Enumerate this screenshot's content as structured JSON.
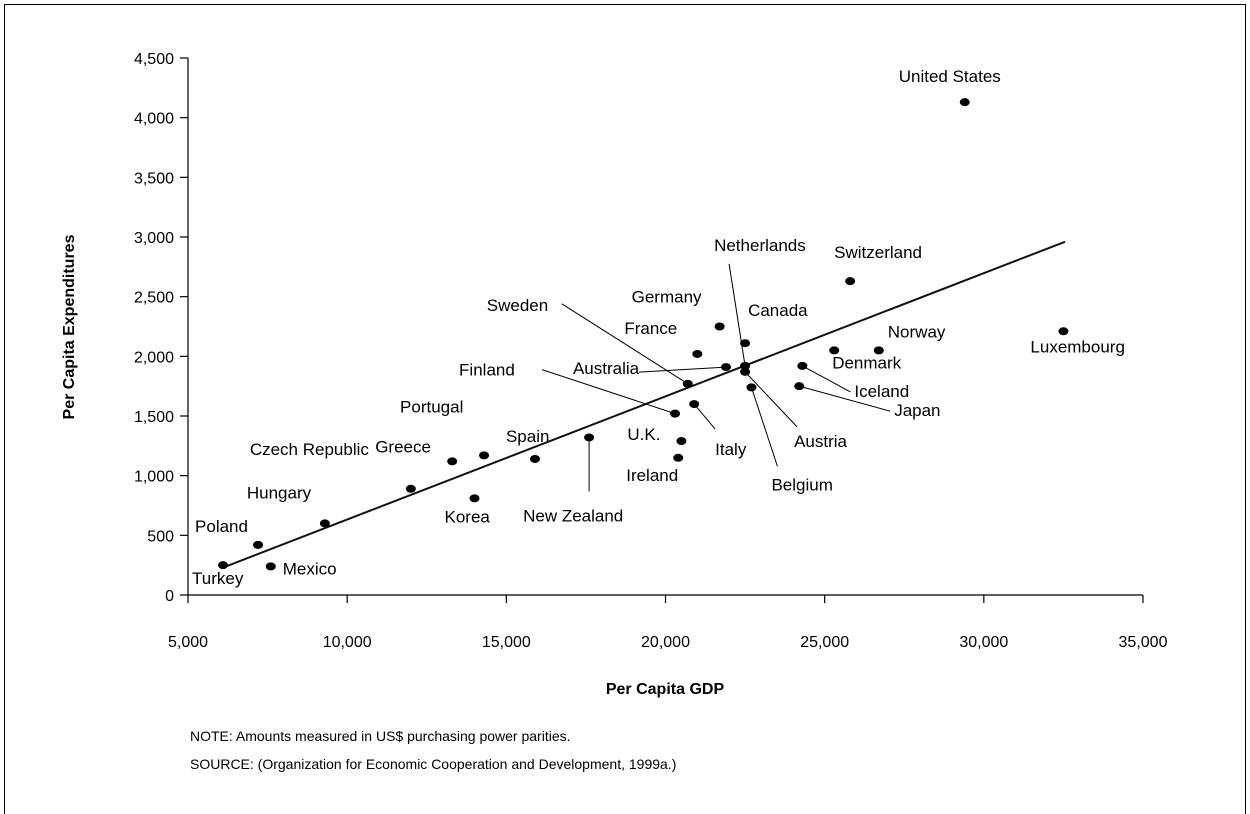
{
  "chart_data": {
    "type": "scatter",
    "xlabel": "Per Capita GDP",
    "ylabel": "Per Capita Expenditures",
    "xlim": [
      5000,
      35000
    ],
    "ylim": [
      0,
      4500
    ],
    "x_ticks": [
      5000,
      10000,
      15000,
      20000,
      25000,
      30000,
      35000
    ],
    "x_tick_labels": [
      "5,000",
      "10,000",
      "15,000",
      "20,000",
      "25,000",
      "30,000",
      "35,000"
    ],
    "y_ticks": [
      0,
      500,
      1000,
      1500,
      2000,
      2500,
      3000,
      3500,
      4000,
      4500
    ],
    "y_tick_labels": [
      "0",
      "500",
      "1,000",
      "1,500",
      "2,000",
      "2,500",
      "3,000",
      "3,500",
      "4,000",
      "4,500"
    ],
    "grid": false,
    "trend_line": {
      "x": [
        6100,
        32550
      ],
      "y": [
        230,
        2960
      ]
    },
    "points": [
      {
        "label": "Turkey",
        "x": 6100,
        "y": 250
      },
      {
        "label": "Poland",
        "x": 7200,
        "y": 420
      },
      {
        "label": "Mexico",
        "x": 7600,
        "y": 240
      },
      {
        "label": "Hungary",
        "x": 9300,
        "y": 600
      },
      {
        "label": "Czech Republic",
        "x": 12000,
        "y": 890
      },
      {
        "label": "Greece",
        "x": 13300,
        "y": 1120
      },
      {
        "label": "Korea",
        "x": 14000,
        "y": 810
      },
      {
        "label": "Portugal",
        "x": 14300,
        "y": 1170
      },
      {
        "label": "Spain",
        "x": 15900,
        "y": 1140
      },
      {
        "label": "New Zealand",
        "x": 17600,
        "y": 1320
      },
      {
        "label": "Finland",
        "x": 20300,
        "y": 1520
      },
      {
        "label": "Ireland",
        "x": 20400,
        "y": 1150
      },
      {
        "label": "U.K.",
        "x": 20500,
        "y": 1290
      },
      {
        "label": "Sweden",
        "x": 20700,
        "y": 1770
      },
      {
        "label": "Italy",
        "x": 20900,
        "y": 1600
      },
      {
        "label": "France",
        "x": 21000,
        "y": 2020
      },
      {
        "label": "Germany",
        "x": 21700,
        "y": 2250
      },
      {
        "label": "Australia",
        "x": 21900,
        "y": 1910
      },
      {
        "label": "Netherlands",
        "x": 22500,
        "y": 1920
      },
      {
        "label": "Austria",
        "x": 22500,
        "y": 1870
      },
      {
        "label": "Canada",
        "x": 22500,
        "y": 2110
      },
      {
        "label": "Belgium",
        "x": 22700,
        "y": 1740
      },
      {
        "label": "Japan",
        "x": 24200,
        "y": 1750
      },
      {
        "label": "Iceland",
        "x": 24300,
        "y": 1920
      },
      {
        "label": "Denmark",
        "x": 25300,
        "y": 2050
      },
      {
        "label": "Switzerland",
        "x": 25800,
        "y": 2630
      },
      {
        "label": "Norway",
        "x": 26700,
        "y": 2050
      },
      {
        "label": "United States",
        "x": 29400,
        "y": 4130
      },
      {
        "label": "Luxembourg",
        "x": 32500,
        "y": 2210
      }
    ]
  },
  "notes": {
    "note": "NOTE: Amounts measured in US$ purchasing power parities.",
    "source": "SOURCE: (Organization for Economic Cooperation and Development, 1999a.)"
  }
}
